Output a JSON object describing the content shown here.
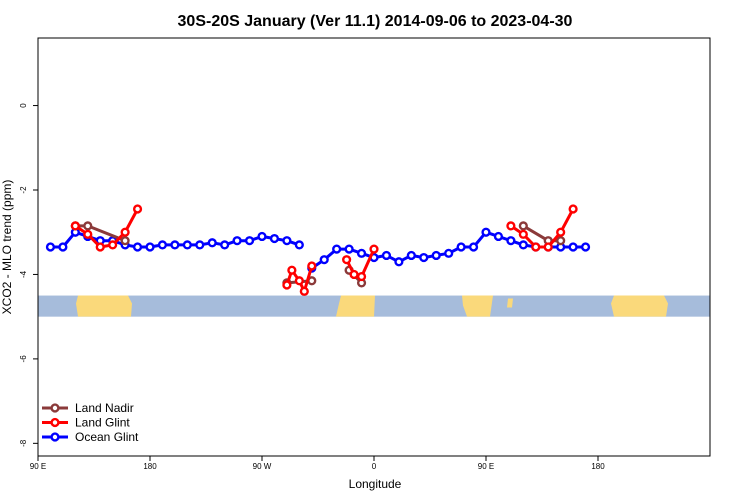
{
  "chart_data": {
    "type": "line",
    "title": "30S-20S January (Ver 11.1)   2014-09-06 to 2023-04-30",
    "xlabel": "Longitude",
    "ylabel": "XCO2 - MLO trend (ppm)",
    "xlim": [
      -90,
      180
    ],
    "ylim": [
      -8.3,
      1.6
    ],
    "x_ticks": [
      {
        "value": -90,
        "label": "90 E"
      },
      {
        "value": -45,
        "label": "180"
      },
      {
        "value": 0,
        "label": "90 W"
      },
      {
        "value": 45,
        "label": "0"
      },
      {
        "value": 90,
        "label": "90 E"
      },
      {
        "value": 135,
        "label": "180"
      }
    ],
    "y_ticks": [
      {
        "value": 0,
        "label": "0"
      },
      {
        "value": -2,
        "label": "-2"
      },
      {
        "value": -4,
        "label": "-4"
      },
      {
        "value": -6,
        "label": "-6"
      },
      {
        "value": -8,
        "label": "-8"
      }
    ],
    "land_band": {
      "y_top": -4.5,
      "y_bottom": -5.0,
      "ocean_color": "#a6bcdb",
      "land_color": "#fad97b"
    },
    "legend_position": "bottom-left",
    "series": [
      {
        "name": "Land Nadir",
        "color": "#8b3a3a",
        "segments": [
          [
            [
              -75,
              -2.85
            ],
            [
              -70,
              -2.85
            ],
            [
              -55,
              -3.2
            ]
          ],
          [
            [
              10,
              -4.2
            ],
            [
              20,
              -4.15
            ]
          ],
          [
            [
              35,
              -3.9
            ],
            [
              40,
              -4.2
            ]
          ],
          [
            [
              105,
              -2.85
            ],
            [
              115,
              -3.2
            ],
            [
              120,
              -3.2
            ]
          ]
        ]
      },
      {
        "name": "Land Glint",
        "color": "#ff0000",
        "segments": [
          [
            [
              -75,
              -2.85
            ],
            [
              -70,
              -3.05
            ],
            [
              -65,
              -3.35
            ],
            [
              -60,
              -3.3
            ],
            [
              -55,
              -3.0
            ],
            [
              -50,
              -2.45
            ]
          ],
          [
            [
              10,
              -4.25
            ],
            [
              12,
              -3.9
            ],
            [
              15,
              -4.15
            ],
            [
              17,
              -4.4
            ],
            [
              20,
              -3.8
            ]
          ],
          [
            [
              34,
              -3.65
            ],
            [
              37,
              -4.0
            ],
            [
              40,
              -4.05
            ],
            [
              45,
              -3.4
            ]
          ],
          [
            [
              100,
              -2.85
            ],
            [
              105,
              -3.05
            ],
            [
              110,
              -3.35
            ],
            [
              115,
              -3.35
            ],
            [
              120,
              -3.0
            ],
            [
              125,
              -2.45
            ]
          ]
        ]
      },
      {
        "name": "Ocean Glint",
        "color": "#0000ff",
        "segments": [
          [
            [
              -85,
              -3.35
            ],
            [
              -80,
              -3.35
            ],
            [
              -75,
              -3.0
            ],
            [
              -70,
              -3.1
            ],
            [
              -65,
              -3.2
            ],
            [
              -60,
              -3.2
            ],
            [
              -55,
              -3.3
            ],
            [
              -50,
              -3.35
            ],
            [
              -45,
              -3.35
            ],
            [
              -40,
              -3.3
            ],
            [
              -35,
              -3.3
            ],
            [
              -30,
              -3.3
            ],
            [
              -25,
              -3.3
            ],
            [
              -20,
              -3.25
            ],
            [
              -15,
              -3.3
            ],
            [
              -10,
              -3.2
            ],
            [
              -5,
              -3.2
            ],
            [
              0,
              -3.1
            ],
            [
              5,
              -3.15
            ],
            [
              10,
              -3.2
            ],
            [
              15,
              -3.3
            ]
          ],
          [
            [
              20,
              -3.85
            ],
            [
              25,
              -3.65
            ],
            [
              30,
              -3.4
            ],
            [
              35,
              -3.4
            ],
            [
              40,
              -3.5
            ],
            [
              45,
              -3.6
            ],
            [
              50,
              -3.55
            ],
            [
              55,
              -3.7
            ],
            [
              60,
              -3.55
            ],
            [
              65,
              -3.6
            ],
            [
              70,
              -3.55
            ],
            [
              75,
              -3.5
            ],
            [
              80,
              -3.35
            ],
            [
              85,
              -3.35
            ],
            [
              90,
              -3.0
            ],
            [
              95,
              -3.1
            ],
            [
              100,
              -3.2
            ],
            [
              105,
              -3.3
            ],
            [
              110,
              -3.35
            ],
            [
              115,
              -3.35
            ],
            [
              120,
              -3.35
            ],
            [
              125,
              -3.35
            ],
            [
              130,
              -3.35
            ]
          ]
        ]
      }
    ]
  }
}
